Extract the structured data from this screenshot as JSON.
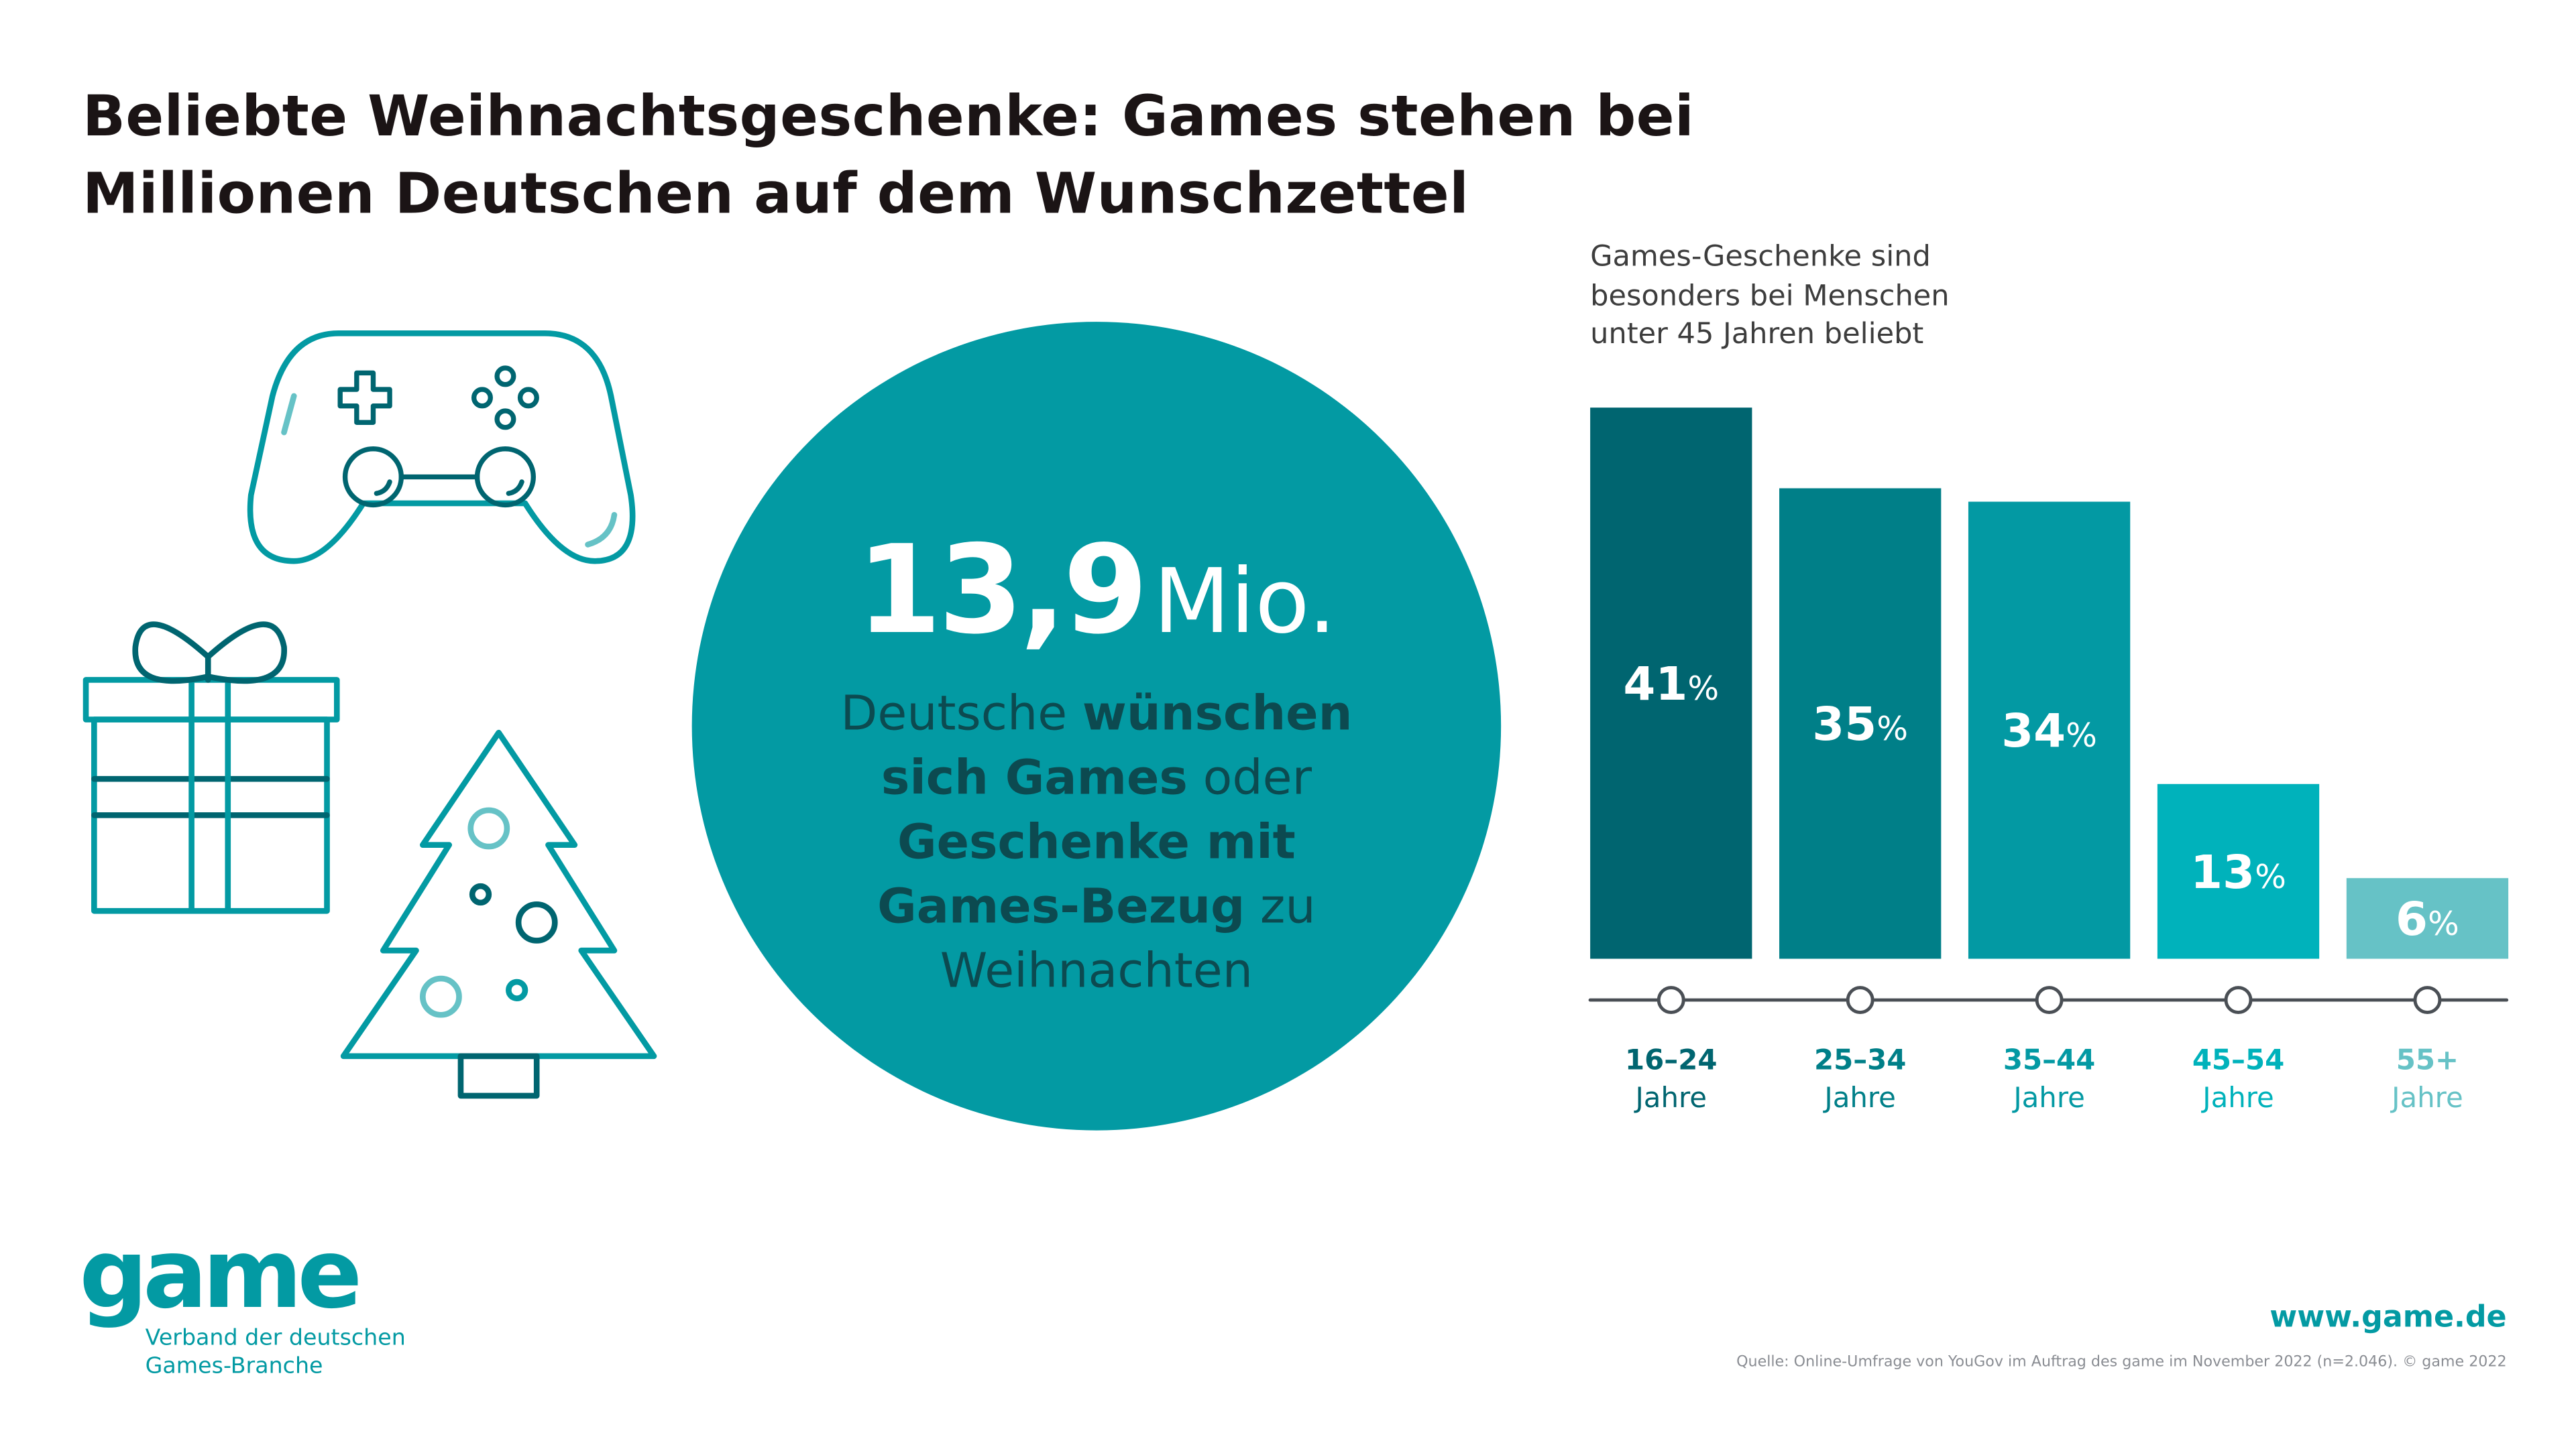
{
  "title_line1": "Beliebte Weihnachtsgeschenke: Games stehen bei",
  "title_line2": "Millionen Deutschen auf dem Wunschzettel",
  "circle": {
    "number": "13,9",
    "unit": "Mio.",
    "t1": "Deutsche ",
    "b1": "wünschen sich Games",
    "t2": " oder ",
    "b2": "Geschenke mit Games-Bezug",
    "t3": " zu Weihnachten"
  },
  "chart_data": {
    "type": "bar",
    "title": "Games-Geschenke sind besonders bei Menschen unter 45 Jahren beliebt",
    "title_lines": [
      "Games-Geschenke sind",
      "besonders bei Menschen",
      "unter 45 Jahren beliebt"
    ],
    "categories": [
      "16–24",
      "25–34",
      "35–44",
      "45–54",
      "55+"
    ],
    "category_sub": "Jahre",
    "values": [
      41,
      35,
      34,
      13,
      6
    ],
    "value_suffix": "%",
    "colors": [
      "#006570",
      "#007f88",
      "#0399a3",
      "#00b2bb",
      "#66c2c6"
    ],
    "ylim": [
      0,
      41
    ]
  },
  "logo": {
    "word": "game",
    "line1": "Verband der deutschen",
    "line2": "Games-Branche"
  },
  "url": "www.game.de",
  "source": "Quelle: Online-Umfrage von YouGov im Auftrag des game im November 2022 (n=2.046). © game 2022",
  "colors": {
    "accent": "#039aa3",
    "dark": "#006570"
  }
}
